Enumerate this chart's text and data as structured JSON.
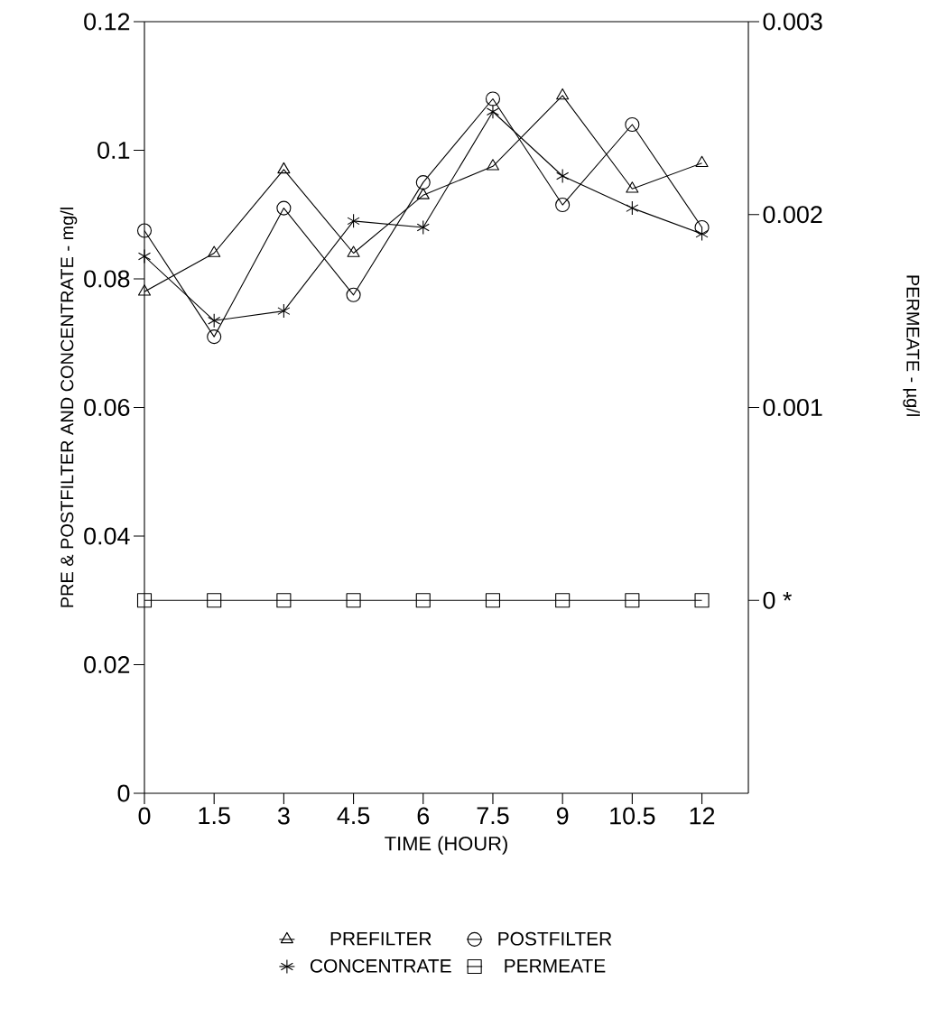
{
  "chart_data": {
    "type": "line",
    "xlabel": "TIME (HOUR)",
    "ylabel": "PRE & POSTFILTER AND CONCENTRATE - mg/l",
    "y2label": "PERMEATE - µg/l",
    "x": [
      0,
      1.5,
      3,
      4.5,
      6,
      7.5,
      9,
      10.5,
      12
    ],
    "series": [
      {
        "name": "PREFILTER",
        "color": "#000000",
        "marker": "triangle",
        "values": [
          0.078,
          0.084,
          0.097,
          0.084,
          0.093,
          0.0975,
          0.1085,
          0.094,
          0.098
        ]
      },
      {
        "name": "POSTFILTER",
        "color": "#000000",
        "marker": "circle",
        "values": [
          0.0875,
          0.071,
          0.091,
          0.0775,
          0.095,
          0.108,
          0.0915,
          0.104,
          0.088
        ]
      },
      {
        "name": "CONCENTRATE",
        "color": "#000000",
        "marker": "cross",
        "values": [
          0.0835,
          0.0735,
          0.075,
          0.089,
          0.088,
          0.106,
          0.096,
          0.091,
          0.087
        ]
      },
      {
        "name": "PERMEATE",
        "color": "#000000",
        "marker": "square",
        "axis": "y2",
        "values": [
          0,
          0,
          0,
          0,
          0,
          0,
          0,
          0,
          0
        ]
      }
    ],
    "xlim": [
      0,
      13
    ],
    "xticks": [
      0,
      1.5,
      3,
      4.5,
      6,
      7.5,
      9,
      10.5,
      12
    ],
    "ylim": [
      0,
      0.12
    ],
    "yticks": [
      0,
      0.02,
      0.04,
      0.06,
      0.08,
      0.1,
      0.12
    ],
    "y2lim": [
      -0.001,
      0.003
    ],
    "y2ticks": [
      {
        "value": 0,
        "label": "0 *"
      },
      0.001,
      0.002,
      0.003
    ],
    "grid": false,
    "legend": "bottom",
    "line_style": "solid"
  }
}
